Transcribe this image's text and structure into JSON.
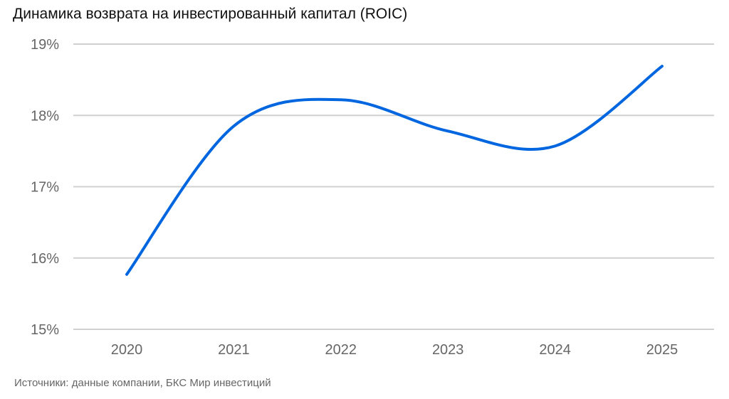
{
  "chart_data": {
    "type": "line",
    "title": "Динамика возврата на инвестированный капитал (ROIC)",
    "source": "Источники: данные компании, БКС Мир инвестиций",
    "categories": [
      "2020",
      "2021",
      "2022",
      "2023",
      "2024",
      "2025"
    ],
    "series": [
      {
        "name": "ROIC",
        "values": [
          15.77,
          17.85,
          18.22,
          17.78,
          17.57,
          18.69
        ],
        "color": "#0066e0"
      }
    ],
    "ylim": [
      15,
      19
    ],
    "yticks": [
      15,
      16,
      17,
      18,
      19
    ],
    "ytick_labels": [
      "15%",
      "16%",
      "17%",
      "18%",
      "19%"
    ],
    "grid": true,
    "smooth": true,
    "xlabel": "",
    "ylabel": ""
  }
}
